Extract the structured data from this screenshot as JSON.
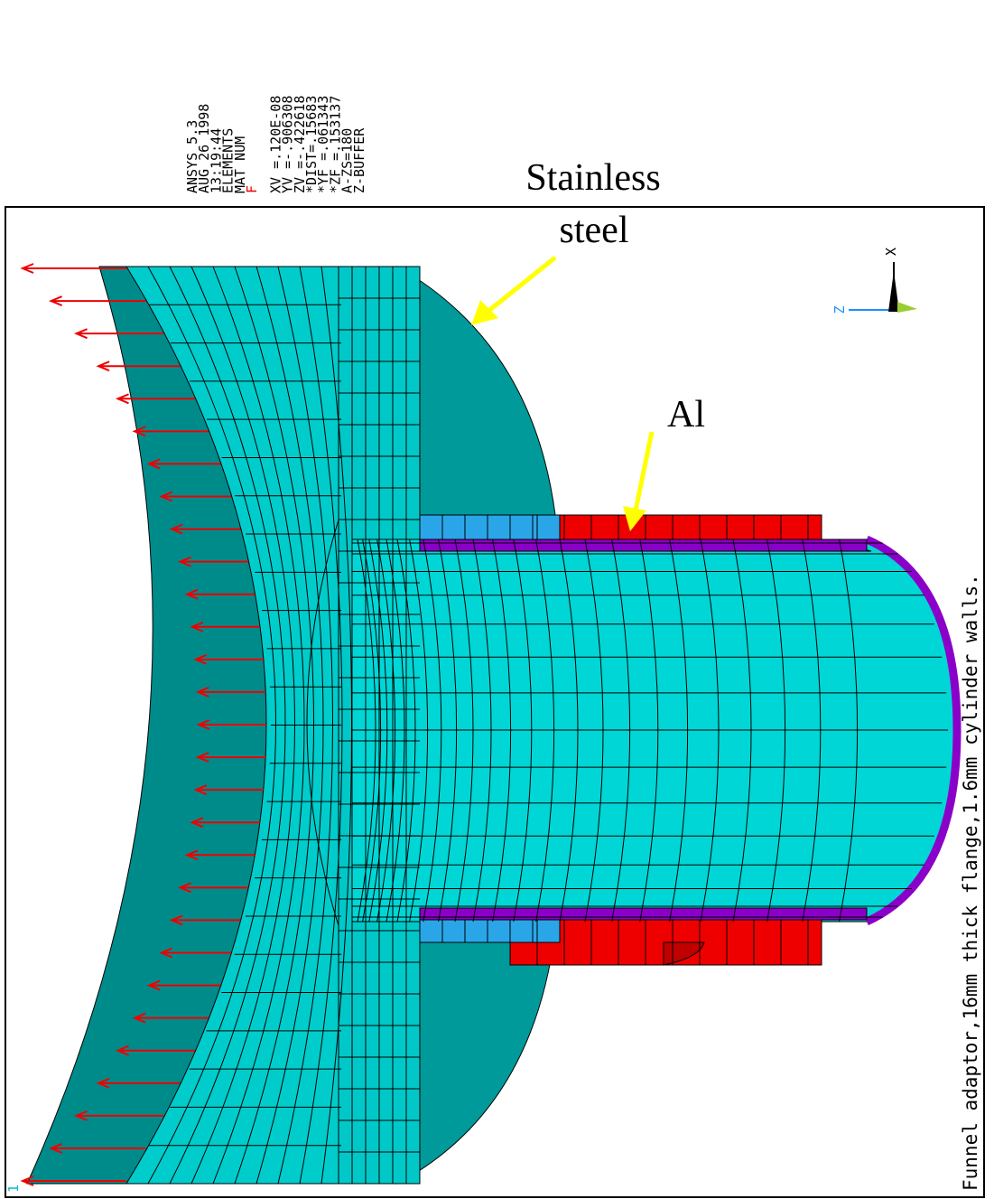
{
  "header": {
    "lines": [
      "ANSYS 5.3",
      "AUG 26 1998",
      "13:19:44",
      "ELEMENTS",
      "MAT NUM",
      "F",
      "XV =.120E-08",
      "YV =-.906308",
      "ZV =-.422618",
      "*DIST=.15683",
      "*YF =.061343",
      "*ZF =.153137",
      "A-ZS=180",
      "Z-BUFFER"
    ]
  },
  "annotations": {
    "stainless": [
      "Stainless",
      "steel"
    ],
    "aluminum": "Al"
  },
  "triad": {
    "x": "X",
    "z": "Z"
  },
  "window_number": "1",
  "caption": "Funnel adaptor,16mm thick flange,1.6mm cylinder walls."
}
